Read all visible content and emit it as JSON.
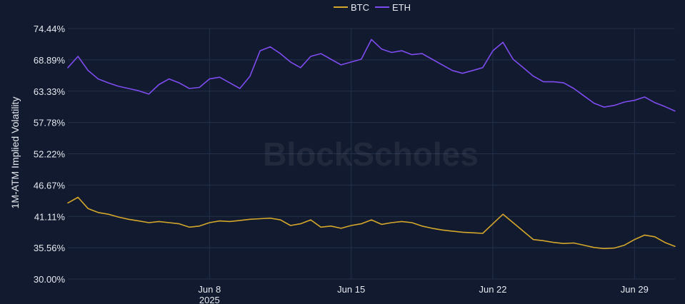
{
  "watermark": "BlockScholes",
  "colors": {
    "background": "#111a2e",
    "grid": "#24304a",
    "text": "#e6e9f0",
    "btc": "#d4a72c",
    "eth": "#7e4cf0"
  },
  "chart_data": {
    "type": "line",
    "title": "",
    "xlabel": "",
    "ylabel": "1M-ATM Implied Volatility",
    "ylim": [
      30.0,
      74.44
    ],
    "yticks": [
      {
        "value": 74.44,
        "label": "74.44%"
      },
      {
        "value": 68.89,
        "label": "68.89%"
      },
      {
        "value": 63.33,
        "label": "63.33%"
      },
      {
        "value": 57.78,
        "label": "57.78%"
      },
      {
        "value": 52.22,
        "label": "52.22%"
      },
      {
        "value": 46.67,
        "label": "46.67%"
      },
      {
        "value": 41.11,
        "label": "41.11%"
      },
      {
        "value": 35.56,
        "label": "35.56%"
      },
      {
        "value": 30.0,
        "label": "30.00%"
      }
    ],
    "xlim": [
      "2025-06-01",
      "2025-07-01"
    ],
    "xticks": [
      {
        "value": "2025-06-08",
        "label": "Jun 8",
        "sublabel": "2025"
      },
      {
        "value": "2025-06-15",
        "label": "Jun 15",
        "sublabel": ""
      },
      {
        "value": "2025-06-22",
        "label": "Jun 22",
        "sublabel": ""
      },
      {
        "value": "2025-06-29",
        "label": "Jun 29",
        "sublabel": ""
      }
    ],
    "grid": true,
    "legend_position": "top-center",
    "series": [
      {
        "name": "BTC",
        "color": "#d4a72c",
        "x": [
          "2025-06-01",
          "2025-06-01",
          "2025-06-02",
          "2025-06-02",
          "2025-06-03",
          "2025-06-03",
          "2025-06-04",
          "2025-06-04",
          "2025-06-05",
          "2025-06-05",
          "2025-06-06",
          "2025-06-06",
          "2025-06-07",
          "2025-06-07",
          "2025-06-08",
          "2025-06-08",
          "2025-06-09",
          "2025-06-09",
          "2025-06-10",
          "2025-06-10",
          "2025-06-11",
          "2025-06-11",
          "2025-06-12",
          "2025-06-12",
          "2025-06-13",
          "2025-06-13",
          "2025-06-14",
          "2025-06-14",
          "2025-06-15",
          "2025-06-15",
          "2025-06-16",
          "2025-06-16",
          "2025-06-17",
          "2025-06-17",
          "2025-06-18",
          "2025-06-18",
          "2025-06-19",
          "2025-06-19",
          "2025-06-20",
          "2025-06-20",
          "2025-06-21",
          "2025-06-21",
          "2025-06-22",
          "2025-06-22",
          "2025-06-23",
          "2025-06-23",
          "2025-06-24",
          "2025-06-24",
          "2025-06-25",
          "2025-06-25",
          "2025-06-26",
          "2025-06-26",
          "2025-06-27",
          "2025-06-27",
          "2025-06-28",
          "2025-06-28",
          "2025-06-29",
          "2025-06-29",
          "2025-06-30",
          "2025-06-30",
          "2025-07-01"
        ],
        "x_hours": [
          0,
          12,
          0,
          12,
          0,
          12,
          0,
          12,
          0,
          12,
          0,
          12,
          0,
          12,
          0,
          12,
          0,
          12,
          0,
          12,
          0,
          12,
          0,
          12,
          0,
          12,
          0,
          12,
          0,
          12,
          0,
          12,
          0,
          12,
          0,
          12,
          0,
          12,
          0,
          12,
          0,
          12,
          0,
          12,
          0,
          12,
          0,
          12,
          0,
          12,
          0,
          12,
          0,
          12,
          0,
          12,
          0,
          12,
          0,
          12,
          0
        ],
        "values": [
          43.5,
          44.5,
          42.5,
          41.8,
          41.5,
          41.0,
          40.6,
          40.3,
          40.0,
          40.2,
          40.0,
          39.8,
          39.2,
          39.4,
          40.0,
          40.3,
          40.2,
          40.4,
          40.6,
          40.7,
          40.8,
          40.5,
          39.5,
          39.8,
          40.5,
          39.2,
          39.4,
          39.0,
          39.5,
          39.8,
          40.5,
          39.7,
          40.0,
          40.2,
          40.0,
          39.4,
          39.0,
          38.7,
          38.5,
          38.3,
          38.2,
          38.1,
          39.8,
          41.5,
          40.0,
          38.5,
          37.0,
          36.8,
          36.5,
          36.3,
          36.4,
          36.0,
          35.6,
          35.4,
          35.5,
          36.0,
          37.0,
          37.8,
          37.5,
          36.5,
          35.8
        ]
      },
      {
        "name": "ETH",
        "color": "#7e4cf0",
        "x": [
          "2025-06-01",
          "2025-06-01",
          "2025-06-02",
          "2025-06-02",
          "2025-06-03",
          "2025-06-03",
          "2025-06-04",
          "2025-06-04",
          "2025-06-05",
          "2025-06-05",
          "2025-06-06",
          "2025-06-06",
          "2025-06-07",
          "2025-06-07",
          "2025-06-08",
          "2025-06-08",
          "2025-06-09",
          "2025-06-09",
          "2025-06-10",
          "2025-06-10",
          "2025-06-11",
          "2025-06-11",
          "2025-06-12",
          "2025-06-12",
          "2025-06-13",
          "2025-06-13",
          "2025-06-14",
          "2025-06-14",
          "2025-06-15",
          "2025-06-15",
          "2025-06-16",
          "2025-06-16",
          "2025-06-17",
          "2025-06-17",
          "2025-06-18",
          "2025-06-18",
          "2025-06-19",
          "2025-06-19",
          "2025-06-20",
          "2025-06-20",
          "2025-06-21",
          "2025-06-21",
          "2025-06-22",
          "2025-06-22",
          "2025-06-23",
          "2025-06-23",
          "2025-06-24",
          "2025-06-24",
          "2025-06-25",
          "2025-06-25",
          "2025-06-26",
          "2025-06-26",
          "2025-06-27",
          "2025-06-27",
          "2025-06-28",
          "2025-06-28",
          "2025-06-29",
          "2025-06-29",
          "2025-06-30",
          "2025-06-30",
          "2025-07-01"
        ],
        "x_hours": [
          0,
          12,
          0,
          12,
          0,
          12,
          0,
          12,
          0,
          12,
          0,
          12,
          0,
          12,
          0,
          12,
          0,
          12,
          0,
          12,
          0,
          12,
          0,
          12,
          0,
          12,
          0,
          12,
          0,
          12,
          0,
          12,
          0,
          12,
          0,
          12,
          0,
          12,
          0,
          12,
          0,
          12,
          0,
          12,
          0,
          12,
          0,
          12,
          0,
          12,
          0,
          12,
          0,
          12,
          0,
          12,
          0,
          12,
          0,
          12,
          0
        ],
        "values": [
          67.5,
          69.5,
          67.0,
          65.5,
          64.8,
          64.2,
          63.8,
          63.4,
          62.8,
          64.5,
          65.5,
          64.8,
          63.8,
          64.0,
          65.5,
          65.8,
          64.8,
          63.8,
          66.0,
          70.5,
          71.2,
          70.0,
          68.5,
          67.5,
          69.5,
          70.0,
          69.0,
          68.0,
          68.5,
          69.0,
          72.5,
          70.8,
          70.2,
          70.5,
          69.8,
          70.0,
          69.0,
          68.0,
          67.0,
          66.5,
          67.0,
          67.5,
          70.5,
          72.0,
          69.0,
          67.5,
          66.0,
          65.0,
          65.0,
          64.8,
          63.8,
          62.5,
          61.2,
          60.5,
          60.8,
          61.4,
          61.7,
          62.3,
          61.3,
          60.6,
          59.8
        ]
      }
    ]
  }
}
